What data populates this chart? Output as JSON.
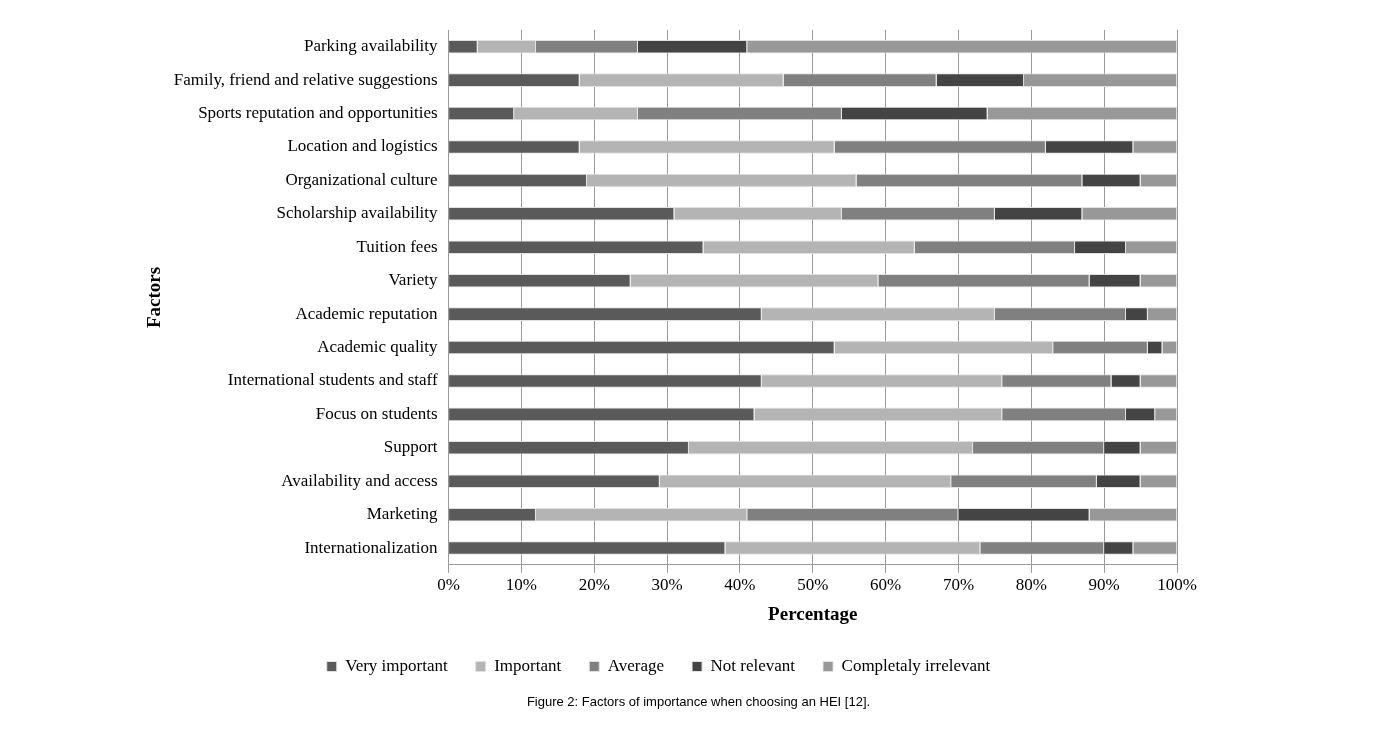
{
  "chart_data": {
    "type": "bar",
    "orientation": "horizontal",
    "stacked": true,
    "xlabel": "Percentage",
    "ylabel": "Factors",
    "categories": [
      "Parking availability",
      "Family, friend and relative suggestions",
      "Sports reputation and opportunities",
      "Location and logistics",
      "Organizational culture",
      "Scholarship availability",
      "Tuition fees",
      "Variety",
      "Academic reputation",
      "Academic quality",
      "International students and staff",
      "Focus on students",
      "Support",
      "Availability and access",
      "Marketing",
      "Internationalization"
    ],
    "series": [
      {
        "name": "Very important",
        "color": "#5a5a5a",
        "values": [
          4,
          18,
          9,
          18,
          19,
          31,
          35,
          25,
          43,
          53,
          43,
          42,
          33,
          29,
          12,
          38
        ]
      },
      {
        "name": "Important",
        "color": "#b4b4b4",
        "values": [
          8,
          28,
          17,
          35,
          37,
          23,
          29,
          34,
          32,
          30,
          33,
          34,
          39,
          40,
          29,
          35
        ]
      },
      {
        "name": "Average",
        "color": "#808080",
        "values": [
          14,
          21,
          28,
          29,
          31,
          21,
          22,
          29,
          18,
          13,
          15,
          17,
          18,
          20,
          29,
          17
        ]
      },
      {
        "name": "Not relevant",
        "color": "#444444",
        "values": [
          15,
          12,
          20,
          12,
          8,
          12,
          7,
          7,
          3,
          2,
          4,
          4,
          5,
          6,
          18,
          4
        ]
      },
      {
        "name": "Completaly irrelevant",
        "color": "#989898",
        "values": [
          59,
          21,
          26,
          6,
          5,
          13,
          7,
          5,
          4,
          2,
          5,
          3,
          5,
          5,
          12,
          6
        ]
      }
    ],
    "xlim": [
      0,
      100
    ],
    "xticks": [
      {
        "value": 0,
        "label": "0%"
      },
      {
        "value": 10,
        "label": "10%"
      },
      {
        "value": 20,
        "label": "20%"
      },
      {
        "value": 30,
        "label": "30%"
      },
      {
        "value": 40,
        "label": "40%"
      },
      {
        "value": 50,
        "label": "50%"
      },
      {
        "value": 60,
        "label": "60%"
      },
      {
        "value": 70,
        "label": "70%"
      },
      {
        "value": 80,
        "label": "80%"
      },
      {
        "value": 90,
        "label": "90%"
      },
      {
        "value": 100,
        "label": "100%"
      }
    ],
    "grid": "x",
    "legend": "bottom",
    "annotations": [
      "Figure 2: Factors of importance when choosing an HEI [12]."
    ]
  }
}
